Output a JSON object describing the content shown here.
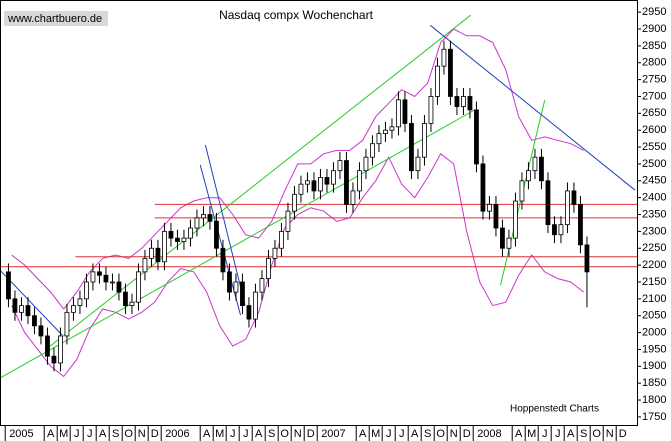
{
  "chart_data": {
    "type": "candlestick",
    "title": "Nasdaq compx Wochenchart",
    "watermark": "www.chartbuero.de",
    "source": "Hoppenstedt Charts",
    "color_up": "#ffffff",
    "color_down": "#000000",
    "x": [
      0.25,
      0.75,
      1.25,
      1.75,
      2.25,
      2.75,
      3.25,
      3.75,
      4.25,
      4.75,
      5.25,
      5.75,
      6.25,
      6.75,
      7.25,
      7.75,
      8.25,
      8.75,
      9.25,
      9.75,
      10.25,
      10.75,
      11.25,
      11.75,
      12.25,
      12.75,
      13.25,
      13.75,
      14.25,
      14.75,
      15.25,
      15.75,
      16.25,
      16.75,
      17.25,
      17.75,
      18.25,
      18.75,
      19.25,
      19.75,
      20.25,
      20.75,
      21.25,
      21.75,
      22.25,
      22.75,
      23.25,
      23.75,
      24.25,
      24.75,
      25.25,
      25.75,
      26.25,
      26.75,
      27.25,
      27.75,
      28.25,
      28.75,
      29.25,
      29.75,
      30.25,
      30.75,
      31.25,
      31.75,
      32.25,
      32.75,
      33.25,
      33.75,
      34.25,
      34.75,
      35.25,
      35.75,
      36.25,
      36.75,
      37.25,
      37.75,
      38.25,
      38.75,
      39.25,
      39.75,
      40.25,
      40.75,
      41.25,
      41.75,
      42.25,
      42.75,
      43.25,
      43.75,
      44.25,
      44.75
    ],
    "open": [
      2180,
      2100,
      2060,
      2080,
      2050,
      2020,
      1990,
      1930,
      1910,
      1990,
      2060,
      2080,
      2100,
      2150,
      2180,
      2170,
      2150,
      2150,
      2120,
      2080,
      2090,
      2180,
      2220,
      2250,
      2210,
      2300,
      2280,
      2270,
      2280,
      2310,
      2340,
      2350,
      2330,
      2250,
      2180,
      2120,
      2150,
      2080,
      2040,
      2120,
      2160,
      2220,
      2250,
      2300,
      2360,
      2410,
      2440,
      2450,
      2420,
      2460,
      2440,
      2480,
      2510,
      2380,
      2420,
      2480,
      2520,
      2560,
      2590,
      2600,
      2610,
      2690,
      2620,
      2480,
      2520,
      2620,
      2700,
      2790,
      2840,
      2700,
      2670,
      2700,
      2660,
      2500,
      2360,
      2380,
      2310,
      2250,
      2280,
      2390,
      2450,
      2480,
      2520,
      2450,
      2320,
      2290,
      2320,
      2420,
      2380,
      2260
    ],
    "high": [
      2205,
      2125,
      2105,
      2105,
      2075,
      2045,
      2015,
      1955,
      2015,
      2085,
      2105,
      2125,
      2175,
      2205,
      2205,
      2195,
      2175,
      2175,
      2145,
      2115,
      2205,
      2245,
      2275,
      2275,
      2325,
      2325,
      2305,
      2305,
      2335,
      2365,
      2375,
      2375,
      2355,
      2275,
      2205,
      2175,
      2175,
      2105,
      2145,
      2185,
      2245,
      2275,
      2325,
      2385,
      2435,
      2465,
      2475,
      2475,
      2485,
      2485,
      2505,
      2535,
      2535,
      2445,
      2505,
      2545,
      2585,
      2615,
      2625,
      2635,
      2715,
      2715,
      2645,
      2545,
      2645,
      2725,
      2815,
      2865,
      2865,
      2725,
      2725,
      2725,
      2685,
      2525,
      2405,
      2405,
      2335,
      2305,
      2415,
      2475,
      2505,
      2545,
      2545,
      2475,
      2345,
      2345,
      2445,
      2445,
      2405,
      2285
    ],
    "low": [
      2075,
      2035,
      2035,
      2025,
      1995,
      1965,
      1905,
      1885,
      1885,
      1965,
      2035,
      2055,
      2075,
      2125,
      2145,
      2125,
      2125,
      2095,
      2055,
      2055,
      2065,
      2155,
      2195,
      2185,
      2185,
      2255,
      2245,
      2245,
      2255,
      2285,
      2315,
      2305,
      2225,
      2155,
      2095,
      2095,
      2055,
      2015,
      2015,
      2095,
      2135,
      2195,
      2225,
      2275,
      2335,
      2385,
      2415,
      2395,
      2395,
      2415,
      2415,
      2455,
      2355,
      2355,
      2395,
      2455,
      2495,
      2535,
      2565,
      2575,
      2585,
      2595,
      2455,
      2455,
      2495,
      2595,
      2675,
      2765,
      2675,
      2645,
      2645,
      2635,
      2475,
      2335,
      2335,
      2285,
      2225,
      2225,
      2255,
      2365,
      2425,
      2455,
      2425,
      2295,
      2265,
      2265,
      2295,
      2355,
      2235,
      2075
    ],
    "close": [
      2100,
      2060,
      2080,
      2050,
      2020,
      1990,
      1930,
      1910,
      1990,
      2060,
      2080,
      2100,
      2150,
      2180,
      2170,
      2150,
      2150,
      2120,
      2080,
      2090,
      2180,
      2220,
      2250,
      2210,
      2300,
      2280,
      2270,
      2280,
      2310,
      2340,
      2350,
      2330,
      2250,
      2180,
      2120,
      2150,
      2080,
      2040,
      2120,
      2160,
      2220,
      2250,
      2300,
      2360,
      2410,
      2440,
      2450,
      2420,
      2460,
      2440,
      2480,
      2510,
      2380,
      2420,
      2480,
      2520,
      2560,
      2590,
      2600,
      2610,
      2690,
      2620,
      2480,
      2520,
      2620,
      2700,
      2790,
      2840,
      2700,
      2670,
      2700,
      2660,
      2500,
      2360,
      2380,
      2310,
      2250,
      2280,
      2390,
      2450,
      2480,
      2520,
      2450,
      2320,
      2290,
      2320,
      2420,
      2380,
      2260,
      2180
    ],
    "bands": {
      "color": "#cc33cc",
      "x": [
        0.5,
        1.5,
        2.5,
        3.5,
        4.5,
        5.5,
        6.5,
        7.5,
        8.5,
        9.5,
        10.5,
        11.5,
        12.5,
        13.5,
        14.5,
        15.5,
        16.5,
        17.5,
        18.5,
        19.5,
        20.5,
        21.5,
        22.5,
        23.5,
        24.5,
        25.5,
        26.5,
        27.5,
        28.5,
        29.5,
        30.5,
        31.5,
        32.5,
        33.5,
        34.5,
        35.5,
        36.5,
        37.5,
        38.5,
        39.5,
        40.5,
        41.5,
        42.5,
        43.5,
        44.5
      ],
      "upper": [
        2230,
        2200,
        2160,
        2120,
        2070,
        2120,
        2180,
        2220,
        2230,
        2220,
        2250,
        2290,
        2330,
        2370,
        2390,
        2400,
        2400,
        2350,
        2290,
        2280,
        2330,
        2420,
        2500,
        2500,
        2530,
        2540,
        2540,
        2570,
        2640,
        2680,
        2720,
        2700,
        2740,
        2860,
        2900,
        2880,
        2880,
        2860,
        2780,
        2640,
        2570,
        2580,
        2570,
        2560,
        2540
      ],
      "lower": [
        2080,
        2000,
        1950,
        1900,
        1870,
        1920,
        2010,
        2070,
        2060,
        2040,
        2060,
        2090,
        2150,
        2190,
        2180,
        2120,
        2020,
        1960,
        1980,
        2060,
        2200,
        2310,
        2350,
        2370,
        2360,
        2330,
        2340,
        2400,
        2450,
        2520,
        2440,
        2400,
        2460,
        2530,
        2500,
        2300,
        2150,
        2080,
        2090,
        2170,
        2230,
        2180,
        2160,
        2150,
        2120
      ]
    },
    "lines": [
      {
        "color": "#e03030",
        "x": [
          11.5,
          48.6
        ],
        "y": [
          2380,
          2380
        ]
      },
      {
        "color": "#e03030",
        "x": [
          11.5,
          48.6
        ],
        "y": [
          2340,
          2340
        ]
      },
      {
        "color": "#e03030",
        "x": [
          5.4,
          48.6
        ],
        "y": [
          2225,
          2225
        ]
      },
      {
        "color": "#e03030",
        "x": [
          -0.4,
          48.6
        ],
        "y": [
          2195,
          2195
        ]
      },
      {
        "color": "#22cc22",
        "x": [
          -0.4,
          36.1
        ],
        "y": [
          1865,
          2660
        ]
      },
      {
        "color": "#22cc22",
        "x": [
          3.06,
          35.8
        ],
        "y": [
          1948,
          2941
        ]
      },
      {
        "color": "#22cc22",
        "x": [
          38.1,
          41.5
        ],
        "y": [
          2141,
          2689
        ]
      },
      {
        "color": "#2040c0",
        "x": [
          -0.4,
          4.37
        ],
        "y": [
          2185,
          1993
        ]
      },
      {
        "color": "#2040c0",
        "x": [
          15.4,
          18.45
        ],
        "y": [
          2556,
          2082
        ]
      },
      {
        "color": "#2040c0",
        "x": [
          15,
          18.1
        ],
        "y": [
          2497,
          2052
        ]
      },
      {
        "color": "#2040c0",
        "x": [
          32.7,
          48.45
        ],
        "y": [
          2911,
          2422
        ]
      }
    ],
    "ylim": [
      1726,
      2986
    ],
    "yticks": [
      1750,
      1800,
      1850,
      1900,
      1950,
      2000,
      2050,
      2100,
      2150,
      2200,
      2250,
      2300,
      2350,
      2400,
      2450,
      2500,
      2550,
      2600,
      2650,
      2700,
      2750,
      2800,
      2850,
      2900,
      2950
    ],
    "xlim": [
      -0.4,
      48.6
    ],
    "xticks": [
      {
        "value": 0,
        "label": "2005"
      },
      {
        "value": 3,
        "label": "A"
      },
      {
        "value": 4,
        "label": "M"
      },
      {
        "value": 5,
        "label": "J"
      },
      {
        "value": 6,
        "label": "J"
      },
      {
        "value": 7,
        "label": "A"
      },
      {
        "value": 8,
        "label": "S"
      },
      {
        "value": 9,
        "label": "O"
      },
      {
        "value": 10,
        "label": "N"
      },
      {
        "value": 11,
        "label": "D"
      },
      {
        "value": 12,
        "label": "2006"
      },
      {
        "value": 15,
        "label": "A"
      },
      {
        "value": 16,
        "label": "M"
      },
      {
        "value": 17,
        "label": "J"
      },
      {
        "value": 18,
        "label": "J"
      },
      {
        "value": 19,
        "label": "A"
      },
      {
        "value": 20,
        "label": "S"
      },
      {
        "value": 21,
        "label": "O"
      },
      {
        "value": 22,
        "label": "N"
      },
      {
        "value": 23,
        "label": "D"
      },
      {
        "value": 24,
        "label": "2007"
      },
      {
        "value": 27,
        "label": "A"
      },
      {
        "value": 28,
        "label": "M"
      },
      {
        "value": 29,
        "label": "J"
      },
      {
        "value": 30,
        "label": "J"
      },
      {
        "value": 31,
        "label": "A"
      },
      {
        "value": 32,
        "label": "S"
      },
      {
        "value": 33,
        "label": "O"
      },
      {
        "value": 34,
        "label": "N"
      },
      {
        "value": 35,
        "label": "D"
      },
      {
        "value": 36,
        "label": "2008"
      },
      {
        "value": 39,
        "label": "A"
      },
      {
        "value": 40,
        "label": "M"
      },
      {
        "value": 41,
        "label": "J"
      },
      {
        "value": 42,
        "label": "J"
      },
      {
        "value": 43,
        "label": "A"
      },
      {
        "value": 44,
        "label": "S"
      },
      {
        "value": 45,
        "label": "O"
      },
      {
        "value": 46,
        "label": "N"
      },
      {
        "value": 47,
        "label": "D"
      }
    ]
  }
}
